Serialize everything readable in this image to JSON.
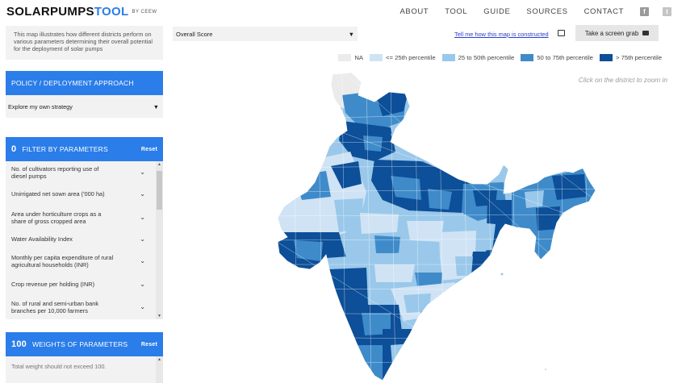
{
  "header": {
    "logo_part1": "SOLARPUMPS",
    "logo_part2": "TOOL",
    "logo_by": "BY CEEW",
    "nav": [
      "ABOUT",
      "TOOL",
      "GUIDE",
      "SOURCES",
      "CONTACT"
    ],
    "social_icons": [
      "facebook-icon",
      "twitter-icon"
    ]
  },
  "intro_text": "This map illustrates how different districts perform on various parameters determining their overall potential for the deployment of solar pumps",
  "policy": {
    "title": "POLICY / DEPLOYMENT APPROACH",
    "selected": "Explore my own strategy"
  },
  "filter": {
    "count": "0",
    "title": "FILTER BY PARAMETERS",
    "reset": "Reset",
    "parameters": [
      "No. of cultivators reporting use of diesel pumps",
      "Unirrigated net sown area ('000 ha)",
      "Area under horticulture crops as a share of gross cropped area",
      "Water Availability Index",
      "Monthly per capita expenditure of rural agricultural households (INR)",
      "Crop revenue per holding (INR)",
      "No. of rural and semi-urban bank branches per 10,000 farmers"
    ]
  },
  "weights": {
    "count": "100",
    "title": "WEIGHTS OF PARAMETERS",
    "reset": "Reset",
    "note": "Total weight should not exceed 100."
  },
  "map_controls": {
    "score_selected": "Overall Score",
    "how_link": "Tell me how this map is constructed",
    "screen_grab": "Take a screen grab"
  },
  "legend": [
    {
      "label": "NA",
      "color": "#ebebeb"
    },
    {
      "label": "<= 25th percentile",
      "color": "#cfe3f5"
    },
    {
      "label": "25 to 50th percentile",
      "color": "#9ac8ea"
    },
    {
      "label": "50 to 75th percentile",
      "color": "#3f8bca"
    },
    {
      "label": "> 75th percentile",
      "color": "#0d4f98"
    }
  ],
  "hint": "Click on the district to zoom in",
  "colors": {
    "accent": "#2b7de9",
    "panel_bg": "#f2f2f2"
  }
}
